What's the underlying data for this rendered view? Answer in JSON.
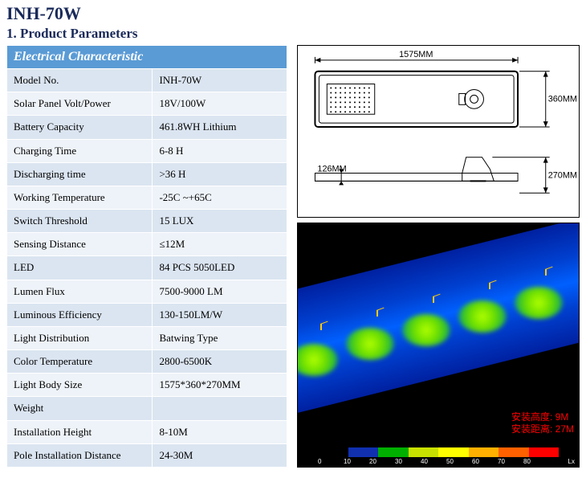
{
  "title": "INH-70W",
  "section_heading": "1. Product Parameters",
  "spec_table": {
    "header": "Electrical Characteristic",
    "rows": [
      {
        "label": "Model No.",
        "value": "INH-70W"
      },
      {
        "label": "Solar Panel Volt/Power",
        "value": "18V/100W"
      },
      {
        "label": "Battery Capacity",
        "value": "461.8WH Lithium"
      },
      {
        "label": "Charging Time",
        "value": "6-8 H"
      },
      {
        "label": "Discharging time",
        "value": ">36 H"
      },
      {
        "label": "Working Temperature",
        "value": "-25C ~+65C"
      },
      {
        "label": "Switch Threshold",
        "value": "15 LUX"
      },
      {
        "label": "Sensing Distance",
        "value": "≤12M"
      },
      {
        "label": "LED",
        "value": "84 PCS 5050LED"
      },
      {
        "label": "Lumen Flux",
        "value": "7500-9000 LM"
      },
      {
        "label": "Luminous Efficiency",
        "value": "130-150LM/W"
      },
      {
        "label": "Light Distribution",
        "value": "Batwing Type"
      },
      {
        "label": "Color Temperature",
        "value": "2800-6500K"
      },
      {
        "label": "Light Body Size",
        "value": "1575*360*270MM"
      },
      {
        "label": "Weight",
        "value": ""
      },
      {
        "label": "Installation Height",
        "value": "8-10M"
      },
      {
        "label": "Pole Installation Distance",
        "value": "24-30M"
      }
    ]
  },
  "dimensions": {
    "length_label": "1575MM",
    "width_label": "360MM",
    "side_height_label": "270MM",
    "side_depth_label": "126MM"
  },
  "photometry": {
    "height_label": "安装高度: 9M",
    "distance_label": "安装距离: 27M",
    "lx_unit": "Lx",
    "lx_ticks": [
      "0",
      "10",
      "20",
      "30",
      "40",
      "50",
      "60",
      "70",
      "80"
    ],
    "lx_colors": [
      "#000000",
      "#1030b0",
      "#00b000",
      "#c8e000",
      "#ffff00",
      "#ffb000",
      "#ff6000",
      "#ff0000"
    ]
  }
}
